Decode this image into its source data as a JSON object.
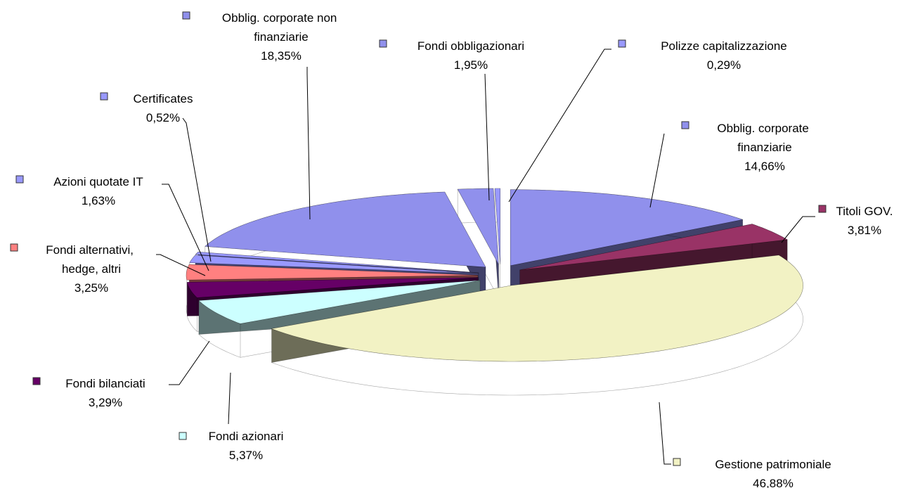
{
  "chart_data": {
    "type": "pie",
    "categories": [
      "Obblig. corporate finanziarie",
      "Titoli GOV.",
      "Gestione patrimoniale",
      "Fondi azionari",
      "Fondi bilanciati",
      "Fondi alternativi, hedge, altri",
      "Azioni quotate IT",
      "Certificates",
      "Obblig. corporate non finanziarie",
      "Fondi obbligazionari",
      "Polizze capitalizzazione"
    ],
    "values": [
      14.66,
      3.81,
      46.88,
      5.37,
      3.29,
      3.25,
      1.63,
      0.52,
      18.35,
      1.95,
      0.29
    ],
    "value_labels": [
      "14,66%",
      "3,81%",
      "46,88%",
      "5,37%",
      "3,29%",
      "3,25%",
      "1,63%",
      "0,52%",
      "18,35%",
      "1,95%",
      "0,29%"
    ],
    "colors": [
      "#9090ec",
      "#993366",
      "#f2f2c4",
      "#ccffff",
      "#660066",
      "#ff8080",
      "#9999ff",
      "#9999ff",
      "#9090ec",
      "#9090ec",
      "#9999ff"
    ]
  }
}
